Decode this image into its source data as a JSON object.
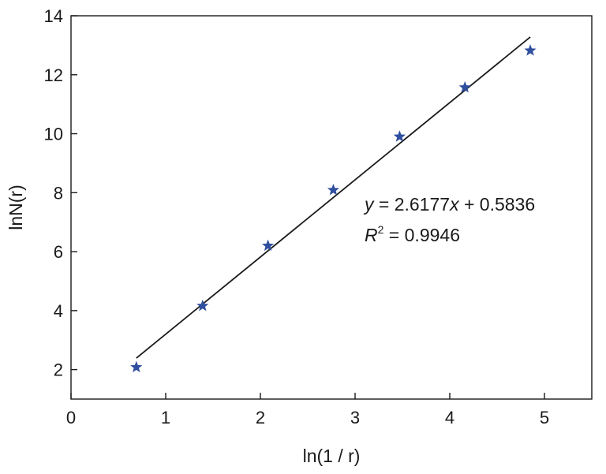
{
  "chart_data": {
    "type": "scatter",
    "xlabel": "ln(1 / r)",
    "ylabel": "lnN(r)",
    "xlim": [
      0,
      5.5
    ],
    "ylim": [
      1,
      14
    ],
    "xticks": [
      0,
      1,
      2,
      3,
      4,
      5
    ],
    "yticks": [
      2,
      4,
      6,
      8,
      10,
      12,
      14
    ],
    "grid": false,
    "series": [
      {
        "marker": "star",
        "color": "#2f4f9f",
        "points": [
          {
            "x": 0.69,
            "y": 2.08
          },
          {
            "x": 1.39,
            "y": 4.16
          },
          {
            "x": 2.08,
            "y": 6.2
          },
          {
            "x": 2.77,
            "y": 8.09
          },
          {
            "x": 3.47,
            "y": 9.9
          },
          {
            "x": 4.16,
            "y": 11.57
          },
          {
            "x": 4.85,
            "y": 12.82
          }
        ]
      }
    ],
    "fit_line": {
      "slope": 2.6177,
      "intercept": 0.5836,
      "x_range": [
        0.69,
        4.85
      ],
      "color": "#1a1a1a"
    },
    "annotations": {
      "equation": {
        "y_var": "y",
        "eq": " = 2.6177",
        "x_var": "x",
        "rest": " + 0.5836"
      },
      "r2": {
        "r_var": "R",
        "power": "2",
        "rest": " = 0.9946"
      }
    }
  }
}
